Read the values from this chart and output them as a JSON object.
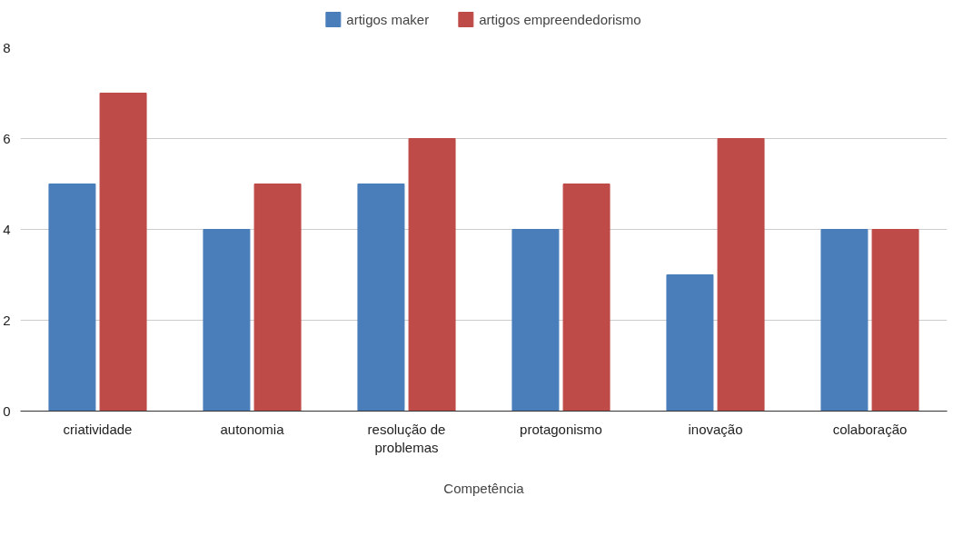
{
  "chart_data": {
    "type": "bar",
    "xlabel": "Competência",
    "categories": [
      "criatividade",
      "autonomia",
      "resolução de problemas",
      "protagonismo",
      "inovação",
      "colaboração"
    ],
    "series": [
      {
        "name": "artigos maker",
        "color": "#4a7ebb",
        "values": [
          5,
          4,
          5,
          4,
          3,
          4
        ]
      },
      {
        "name": "artigos empreendedorismo",
        "color": "#be4b48",
        "values": [
          7,
          5,
          6,
          5,
          6,
          4
        ]
      }
    ],
    "ylim": [
      0,
      8
    ],
    "yticks": [
      0,
      2,
      4,
      6,
      8
    ],
    "grid": "y",
    "legend": "top"
  }
}
